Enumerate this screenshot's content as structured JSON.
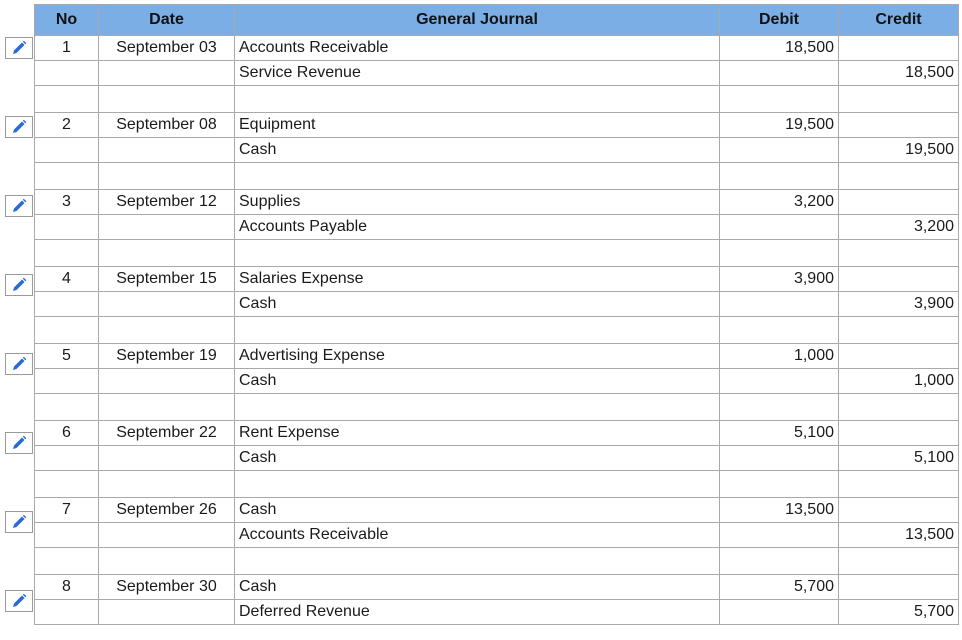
{
  "headers": {
    "no": "No",
    "date": "Date",
    "journal": "General Journal",
    "debit": "Debit",
    "credit": "Credit"
  },
  "icon": "pencil-edit-icon",
  "colors": {
    "header_bg": "#7aaee4",
    "pencil": "#2a6ad6",
    "grid": "#a9a9a9"
  },
  "entries": [
    {
      "no": "1",
      "date": "September 03",
      "debit_account": "Accounts Receivable",
      "credit_account": "Service Revenue",
      "debit": "18,500",
      "credit": "18,500"
    },
    {
      "no": "2",
      "date": "September 08",
      "debit_account": "Equipment",
      "credit_account": "Cash",
      "debit": "19,500",
      "credit": "19,500"
    },
    {
      "no": "3",
      "date": "September 12",
      "debit_account": "Supplies",
      "credit_account": "Accounts Payable",
      "debit": "3,200",
      "credit": "3,200"
    },
    {
      "no": "4",
      "date": "September 15",
      "debit_account": "Salaries Expense",
      "credit_account": "Cash",
      "debit": "3,900",
      "credit": "3,900"
    },
    {
      "no": "5",
      "date": "September 19",
      "debit_account": "Advertising Expense",
      "credit_account": "Cash",
      "debit": "1,000",
      "credit": "1,000"
    },
    {
      "no": "6",
      "date": "September 22",
      "debit_account": "Rent Expense",
      "credit_account": "Cash",
      "debit": "5,100",
      "credit": "5,100"
    },
    {
      "no": "7",
      "date": "September 26",
      "debit_account": "Cash",
      "credit_account": "Accounts Receivable",
      "debit": "13,500",
      "credit": "13,500"
    },
    {
      "no": "8",
      "date": "September 30",
      "debit_account": "Cash",
      "credit_account": "Deferred Revenue",
      "debit": "5,700",
      "credit": "5,700"
    }
  ]
}
